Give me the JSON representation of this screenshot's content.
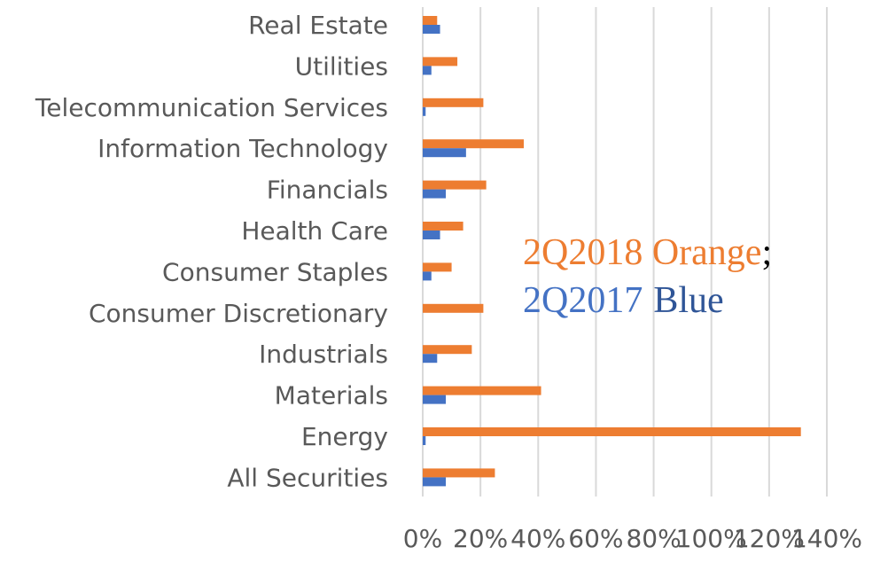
{
  "chart_data": {
    "type": "bar",
    "orientation": "horizontal",
    "categories": [
      "Real Estate",
      "Utilities",
      "Telecommunication Services",
      "Information Technology",
      "Financials",
      "Health Care",
      "Consumer Staples",
      "Consumer Discretionary",
      "Industrials",
      "Materials",
      "Energy",
      "All Securities"
    ],
    "series": [
      {
        "key": "2Q2018",
        "color": "#ED7D31",
        "values": [
          5,
          12,
          21,
          35,
          22,
          14,
          10,
          21,
          17,
          41,
          131,
          25
        ]
      },
      {
        "key": "2Q2017",
        "color": "#4472C4",
        "values": [
          6,
          3,
          1,
          15,
          8,
          6,
          3,
          0,
          5,
          8,
          1,
          8
        ]
      }
    ],
    "xlim": [
      0,
      140
    ],
    "x_ticks": [
      "0%",
      "20%",
      "40%",
      "60%",
      "80%",
      "100%",
      "120%",
      "140%"
    ],
    "grid": "vertical",
    "legend": {
      "line1_colored": "2Q2018 Orange",
      "line1_suffix": ";",
      "line2_colored": "2Q2017",
      "line2_suffix": "Blue",
      "placement": "right"
    }
  }
}
